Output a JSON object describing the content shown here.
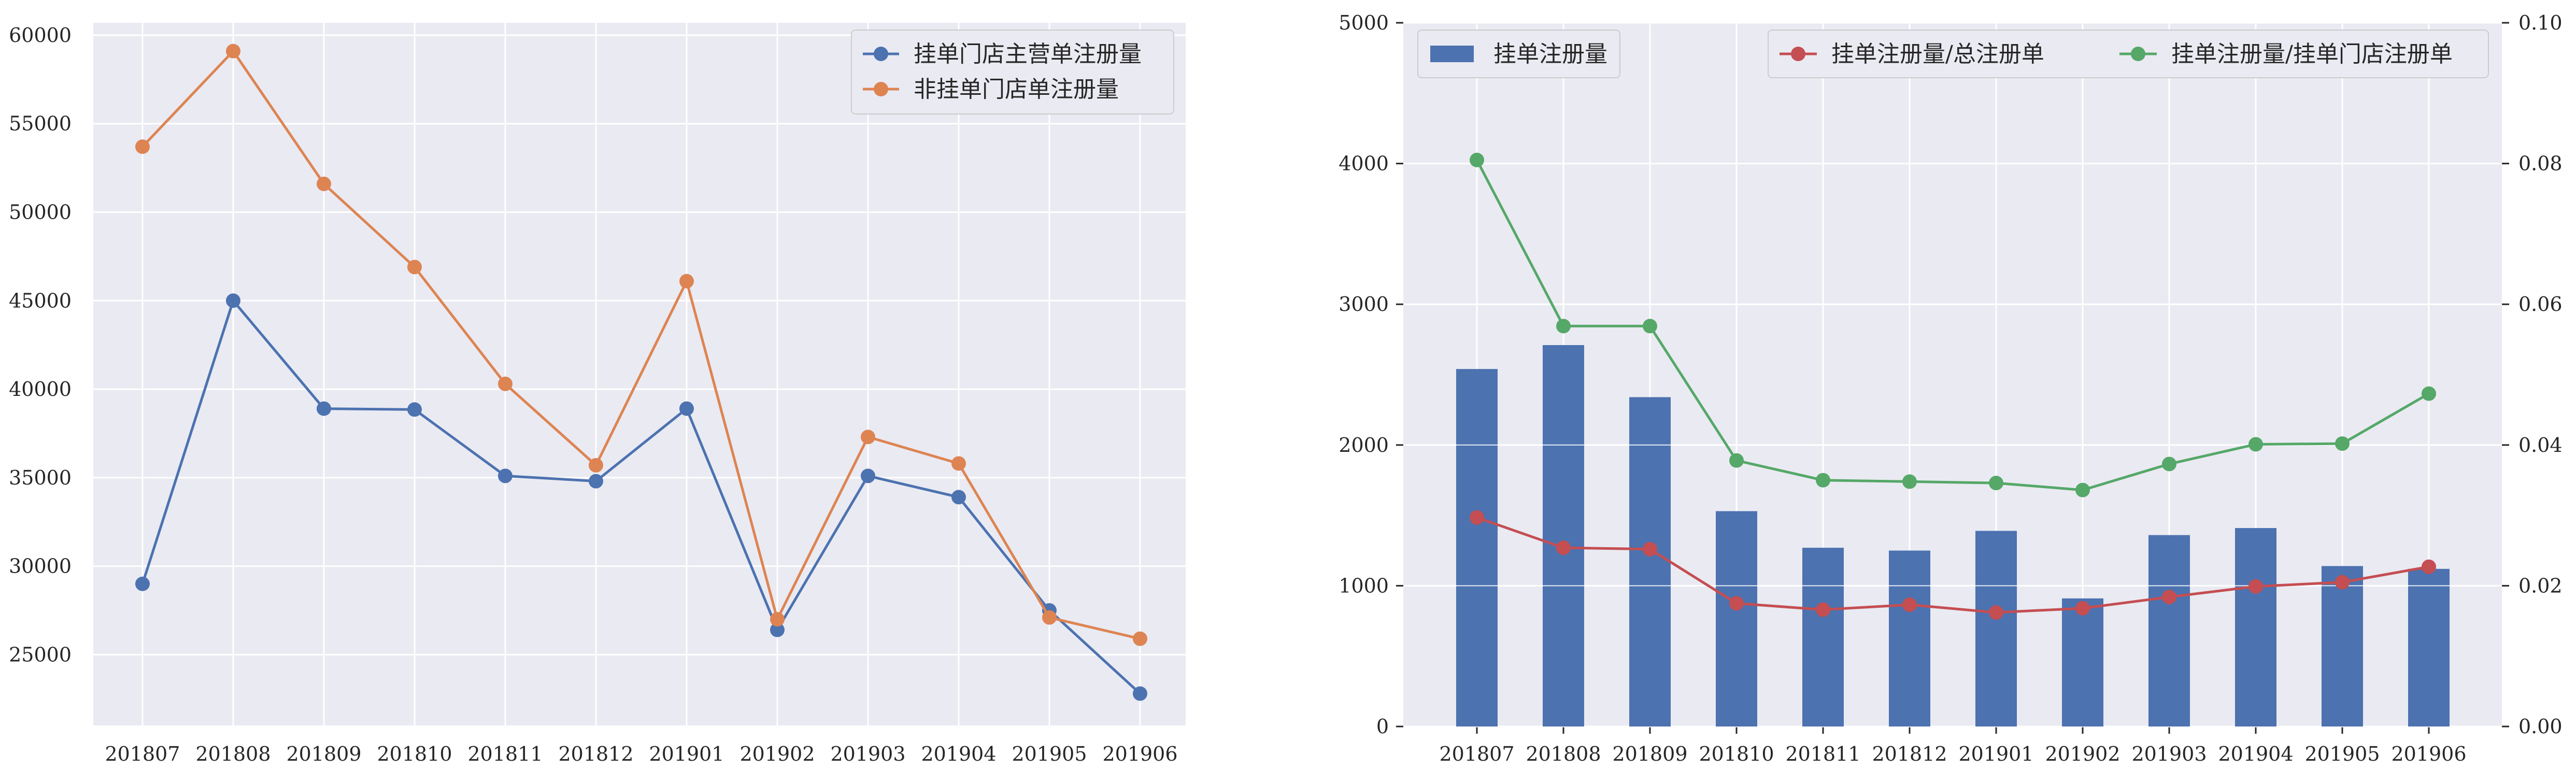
{
  "colors": {
    "background": "#ffffff",
    "plot_background": "#eaeaf2",
    "grid": "#ffffff",
    "blue": "#4c72b0",
    "orange": "#dd8452",
    "red": "#c44e52",
    "green": "#55a868",
    "text": "#262626"
  },
  "chart_data": [
    {
      "type": "line",
      "categories": [
        "201807",
        "201808",
        "201809",
        "201810",
        "201811",
        "201812",
        "201901",
        "201902",
        "201903",
        "201904",
        "201905",
        "201906"
      ],
      "series": [
        {
          "name": "挂单门店主营单注册量",
          "color": "#4c72b0",
          "values": [
            29000,
            45000,
            38900,
            38850,
            35100,
            34800,
            38900,
            26400,
            35100,
            33900,
            27500,
            22800
          ]
        },
        {
          "name": "非挂单门店单注册量",
          "color": "#dd8452",
          "values": [
            53700,
            59100,
            51600,
            46900,
            40300,
            35700,
            46100,
            27000,
            37300,
            35800,
            27100,
            25900
          ]
        }
      ],
      "yticks": [
        25000,
        30000,
        35000,
        40000,
        45000,
        50000,
        55000,
        60000
      ],
      "ylim": [
        21000,
        60700
      ],
      "grid": true,
      "legend": "top-right",
      "title": "",
      "xlabel": "",
      "ylabel": ""
    },
    {
      "type": "bar",
      "categories": [
        "201807",
        "201808",
        "201809",
        "201810",
        "201811",
        "201812",
        "201901",
        "201902",
        "201903",
        "201904",
        "201905",
        "201906"
      ],
      "series": [
        {
          "name": "挂单注册量",
          "axis": "left",
          "kind": "bar",
          "color": "#4c72b0",
          "values": [
            2540,
            2710,
            2340,
            1530,
            1270,
            1250,
            1390,
            910,
            1360,
            1410,
            1140,
            1120
          ]
        },
        {
          "name": "挂单注册量/总注册单",
          "axis": "right",
          "kind": "line",
          "color": "#c44e52",
          "values": [
            0.0297,
            0.0254,
            0.0252,
            0.0175,
            0.0166,
            0.0173,
            0.0162,
            0.0168,
            0.0184,
            0.0199,
            0.0205,
            0.0227
          ]
        },
        {
          "name": "挂单注册量/挂单门店注册单",
          "axis": "right",
          "kind": "line",
          "color": "#55a868",
          "values": [
            0.0805,
            0.0569,
            0.0569,
            0.0378,
            0.035,
            0.0348,
            0.0346,
            0.0336,
            0.0373,
            0.0401,
            0.0402,
            0.0473
          ]
        }
      ],
      "ylim_left": [
        0,
        5000
      ],
      "yticks_left": [
        0,
        1000,
        2000,
        3000,
        4000,
        5000
      ],
      "ylim_right": [
        0,
        0.1
      ],
      "yticks_right": [
        "0.00",
        "0.02",
        "0.04",
        "0.06",
        "0.08",
        "0.10"
      ],
      "grid": true,
      "legend": "top-left (bars), top-right (lines)",
      "title": "",
      "xlabel": "",
      "ylabel": ""
    }
  ]
}
